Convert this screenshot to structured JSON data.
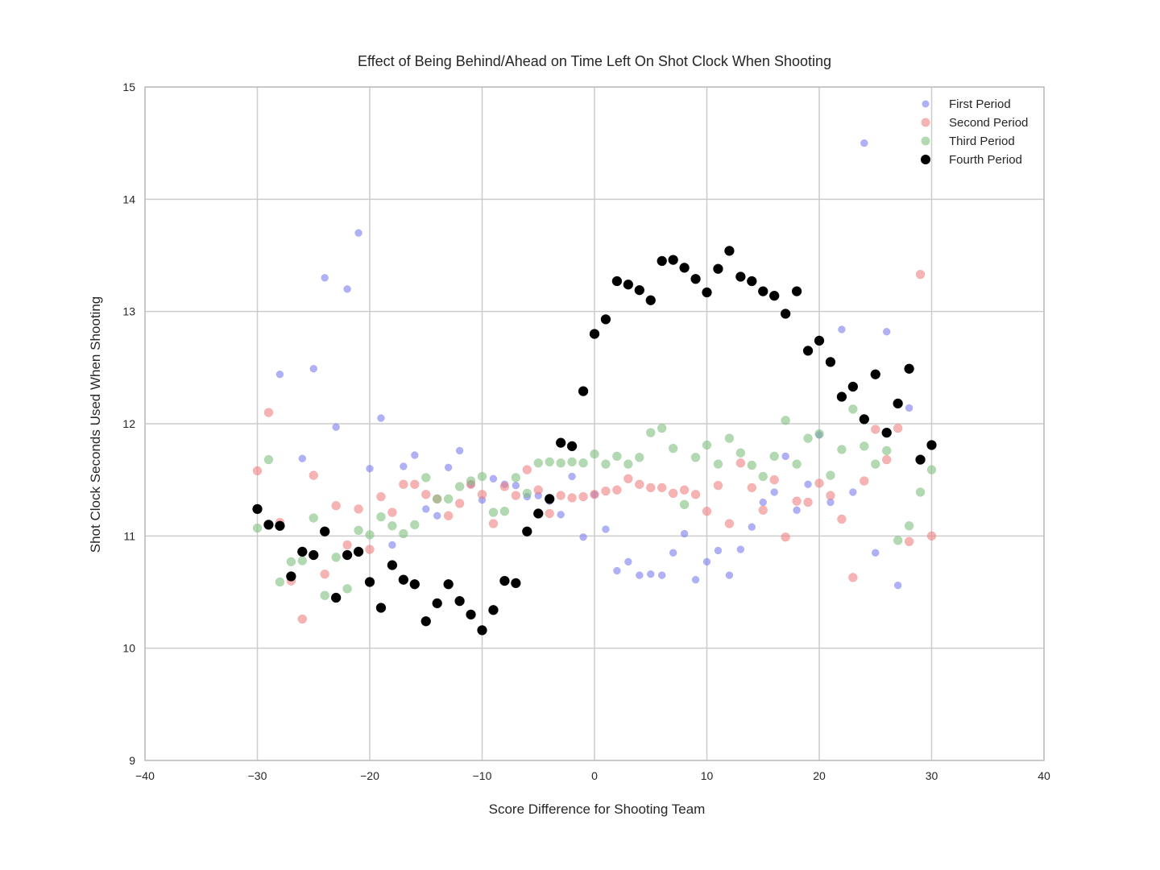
{
  "chart_data": {
    "type": "scatter",
    "title": "Effect of Being Behind/Ahead on Time Left On Shot Clock When Shooting",
    "xlabel": "Score Difference for Shooting Team",
    "ylabel": "Shot Clock Seconds Used When Shooting",
    "xlim": [
      -40,
      40
    ],
    "ylim": [
      9,
      15
    ],
    "xticks": [
      -40,
      -30,
      -20,
      -10,
      0,
      10,
      20,
      30,
      40
    ],
    "yticks": [
      9,
      10,
      11,
      12,
      13,
      14,
      15
    ],
    "xtick_labels": [
      "−40",
      "−30",
      "−20",
      "−10",
      "0",
      "10",
      "20",
      "30",
      "40"
    ],
    "ytick_labels": [
      "9",
      "10",
      "11",
      "12",
      "13",
      "14",
      "15"
    ],
    "grid": true,
    "legend_position": "top-right",
    "series": [
      {
        "name": "First Period",
        "color": "#7b7bf0",
        "opacity": 0.6,
        "points": [
          [
            -28,
            12.44
          ],
          [
            -26,
            11.69
          ],
          [
            -25,
            12.49
          ],
          [
            -24,
            13.3
          ],
          [
            -23,
            11.97
          ],
          [
            -22,
            13.2
          ],
          [
            -21,
            13.7
          ],
          [
            -20,
            11.6
          ],
          [
            -19,
            12.05
          ],
          [
            -18,
            10.92
          ],
          [
            -17,
            11.62
          ],
          [
            -16,
            11.72
          ],
          [
            -15,
            11.24
          ],
          [
            -14,
            11.18
          ],
          [
            -13,
            11.61
          ],
          [
            -12,
            11.76
          ],
          [
            -11,
            11.46
          ],
          [
            -10,
            11.32
          ],
          [
            -9,
            11.51
          ],
          [
            -8,
            11.46
          ],
          [
            -7,
            11.45
          ],
          [
            -6,
            11.35
          ],
          [
            -5,
            11.36
          ],
          [
            -4,
            11.31
          ],
          [
            -3,
            11.19
          ],
          [
            -2,
            11.53
          ],
          [
            -1,
            10.99
          ],
          [
            0,
            11.37
          ],
          [
            1,
            11.06
          ],
          [
            2,
            10.69
          ],
          [
            3,
            10.77
          ],
          [
            4,
            10.65
          ],
          [
            5,
            10.66
          ],
          [
            6,
            10.65
          ],
          [
            7,
            10.85
          ],
          [
            8,
            11.02
          ],
          [
            9,
            10.61
          ],
          [
            10,
            10.77
          ],
          [
            11,
            10.87
          ],
          [
            12,
            10.65
          ],
          [
            13,
            10.88
          ],
          [
            14,
            11.08
          ],
          [
            15,
            11.3
          ],
          [
            16,
            11.39
          ],
          [
            17,
            11.71
          ],
          [
            18,
            11.23
          ],
          [
            19,
            11.46
          ],
          [
            20,
            11.9
          ],
          [
            21,
            11.3
          ],
          [
            22,
            12.84
          ],
          [
            23,
            11.39
          ],
          [
            24,
            14.5
          ],
          [
            25,
            10.85
          ],
          [
            26,
            12.82
          ],
          [
            27,
            10.56
          ],
          [
            28,
            12.14
          ]
        ]
      },
      {
        "name": "Second Period",
        "color": "#f08080",
        "opacity": 0.6,
        "points": [
          [
            -30,
            11.58
          ],
          [
            -29,
            12.1
          ],
          [
            -28,
            11.12
          ],
          [
            -27,
            10.6
          ],
          [
            -26,
            10.26
          ],
          [
            -25,
            11.54
          ],
          [
            -24,
            10.66
          ],
          [
            -23,
            11.27
          ],
          [
            -22,
            10.92
          ],
          [
            -21,
            11.24
          ],
          [
            -20,
            10.88
          ],
          [
            -19,
            11.35
          ],
          [
            -18,
            11.21
          ],
          [
            -17,
            11.46
          ],
          [
            -16,
            11.46
          ],
          [
            -15,
            11.37
          ],
          [
            -14,
            11.33
          ],
          [
            -13,
            11.18
          ],
          [
            -12,
            11.29
          ],
          [
            -11,
            11.46
          ],
          [
            -10,
            11.37
          ],
          [
            -9,
            11.11
          ],
          [
            -8,
            11.44
          ],
          [
            -7,
            11.36
          ],
          [
            -6,
            11.59
          ],
          [
            -5,
            11.41
          ],
          [
            -4,
            11.2
          ],
          [
            -3,
            11.36
          ],
          [
            -2,
            11.34
          ],
          [
            -1,
            11.35
          ],
          [
            0,
            11.37
          ],
          [
            1,
            11.4
          ],
          [
            2,
            11.41
          ],
          [
            3,
            11.51
          ],
          [
            4,
            11.46
          ],
          [
            5,
            11.43
          ],
          [
            6,
            11.43
          ],
          [
            7,
            11.38
          ],
          [
            8,
            11.41
          ],
          [
            9,
            11.37
          ],
          [
            10,
            11.22
          ],
          [
            11,
            11.45
          ],
          [
            12,
            11.11
          ],
          [
            13,
            11.65
          ],
          [
            14,
            11.43
          ],
          [
            15,
            11.23
          ],
          [
            16,
            11.5
          ],
          [
            17,
            10.99
          ],
          [
            18,
            11.31
          ],
          [
            19,
            11.3
          ],
          [
            20,
            11.47
          ],
          [
            21,
            11.36
          ],
          [
            22,
            11.15
          ],
          [
            23,
            10.63
          ],
          [
            24,
            11.49
          ],
          [
            25,
            11.95
          ],
          [
            26,
            11.68
          ],
          [
            27,
            11.96
          ],
          [
            28,
            10.95
          ],
          [
            29,
            13.33
          ],
          [
            30,
            11.0
          ]
        ]
      },
      {
        "name": "Third Period",
        "color": "#80c080",
        "opacity": 0.6,
        "points": [
          [
            -30,
            11.07
          ],
          [
            -29,
            11.68
          ],
          [
            -28,
            10.59
          ],
          [
            -27,
            10.77
          ],
          [
            -26,
            10.78
          ],
          [
            -25,
            11.16
          ],
          [
            -24,
            10.47
          ],
          [
            -23,
            10.81
          ],
          [
            -22,
            10.53
          ],
          [
            -21,
            11.05
          ],
          [
            -20,
            11.01
          ],
          [
            -19,
            11.17
          ],
          [
            -18,
            11.09
          ],
          [
            -17,
            11.02
          ],
          [
            -16,
            11.1
          ],
          [
            -15,
            11.52
          ],
          [
            -14,
            11.33
          ],
          [
            -13,
            11.33
          ],
          [
            -12,
            11.44
          ],
          [
            -11,
            11.49
          ],
          [
            -10,
            11.53
          ],
          [
            -9,
            11.21
          ],
          [
            -8,
            11.22
          ],
          [
            -7,
            11.52
          ],
          [
            -6,
            11.38
          ],
          [
            -5,
            11.65
          ],
          [
            -4,
            11.66
          ],
          [
            -3,
            11.65
          ],
          [
            -2,
            11.66
          ],
          [
            -1,
            11.65
          ],
          [
            0,
            11.73
          ],
          [
            1,
            11.64
          ],
          [
            2,
            11.71
          ],
          [
            3,
            11.64
          ],
          [
            4,
            11.7
          ],
          [
            5,
            11.92
          ],
          [
            6,
            11.96
          ],
          [
            7,
            11.78
          ],
          [
            8,
            11.28
          ],
          [
            9,
            11.7
          ],
          [
            10,
            11.81
          ],
          [
            11,
            11.64
          ],
          [
            12,
            11.87
          ],
          [
            13,
            11.74
          ],
          [
            14,
            11.63
          ],
          [
            15,
            11.53
          ],
          [
            16,
            11.71
          ],
          [
            17,
            12.03
          ],
          [
            18,
            11.64
          ],
          [
            19,
            11.87
          ],
          [
            20,
            11.91
          ],
          [
            21,
            11.54
          ],
          [
            22,
            11.77
          ],
          [
            23,
            12.13
          ],
          [
            24,
            11.8
          ],
          [
            25,
            11.64
          ],
          [
            26,
            11.76
          ],
          [
            27,
            10.96
          ],
          [
            28,
            11.09
          ],
          [
            29,
            11.39
          ],
          [
            30,
            11.59
          ]
        ]
      },
      {
        "name": "Fourth Period",
        "color": "#000000",
        "opacity": 1,
        "points": [
          [
            -30,
            11.24
          ],
          [
            -29,
            11.1
          ],
          [
            -28,
            11.09
          ],
          [
            -27,
            10.64
          ],
          [
            -26,
            10.86
          ],
          [
            -25,
            10.83
          ],
          [
            -24,
            11.04
          ],
          [
            -23,
            10.45
          ],
          [
            -22,
            10.83
          ],
          [
            -21,
            10.86
          ],
          [
            -20,
            10.59
          ],
          [
            -19,
            10.36
          ],
          [
            -18,
            10.74
          ],
          [
            -17,
            10.61
          ],
          [
            -16,
            10.57
          ],
          [
            -15,
            10.24
          ],
          [
            -14,
            10.4
          ],
          [
            -13,
            10.57
          ],
          [
            -12,
            10.42
          ],
          [
            -11,
            10.3
          ],
          [
            -10,
            10.16
          ],
          [
            -9,
            10.34
          ],
          [
            -8,
            10.6
          ],
          [
            -7,
            10.58
          ],
          [
            -6,
            11.04
          ],
          [
            -5,
            11.2
          ],
          [
            -4,
            11.33
          ],
          [
            -3,
            11.83
          ],
          [
            -2,
            11.8
          ],
          [
            -1,
            12.29
          ],
          [
            0,
            12.8
          ],
          [
            1,
            12.93
          ],
          [
            2,
            13.27
          ],
          [
            3,
            13.24
          ],
          [
            4,
            13.19
          ],
          [
            5,
            13.1
          ],
          [
            6,
            13.45
          ],
          [
            7,
            13.46
          ],
          [
            8,
            13.39
          ],
          [
            9,
            13.29
          ],
          [
            10,
            13.17
          ],
          [
            11,
            13.38
          ],
          [
            12,
            13.54
          ],
          [
            13,
            13.31
          ],
          [
            14,
            13.27
          ],
          [
            15,
            13.18
          ],
          [
            16,
            13.14
          ],
          [
            17,
            12.98
          ],
          [
            18,
            13.18
          ],
          [
            19,
            12.65
          ],
          [
            20,
            12.74
          ],
          [
            21,
            12.55
          ],
          [
            22,
            12.24
          ],
          [
            23,
            12.33
          ],
          [
            24,
            12.04
          ],
          [
            25,
            12.44
          ],
          [
            26,
            11.92
          ],
          [
            27,
            12.18
          ],
          [
            28,
            12.49
          ],
          [
            29,
            11.68
          ],
          [
            30,
            11.81
          ]
        ]
      }
    ]
  }
}
